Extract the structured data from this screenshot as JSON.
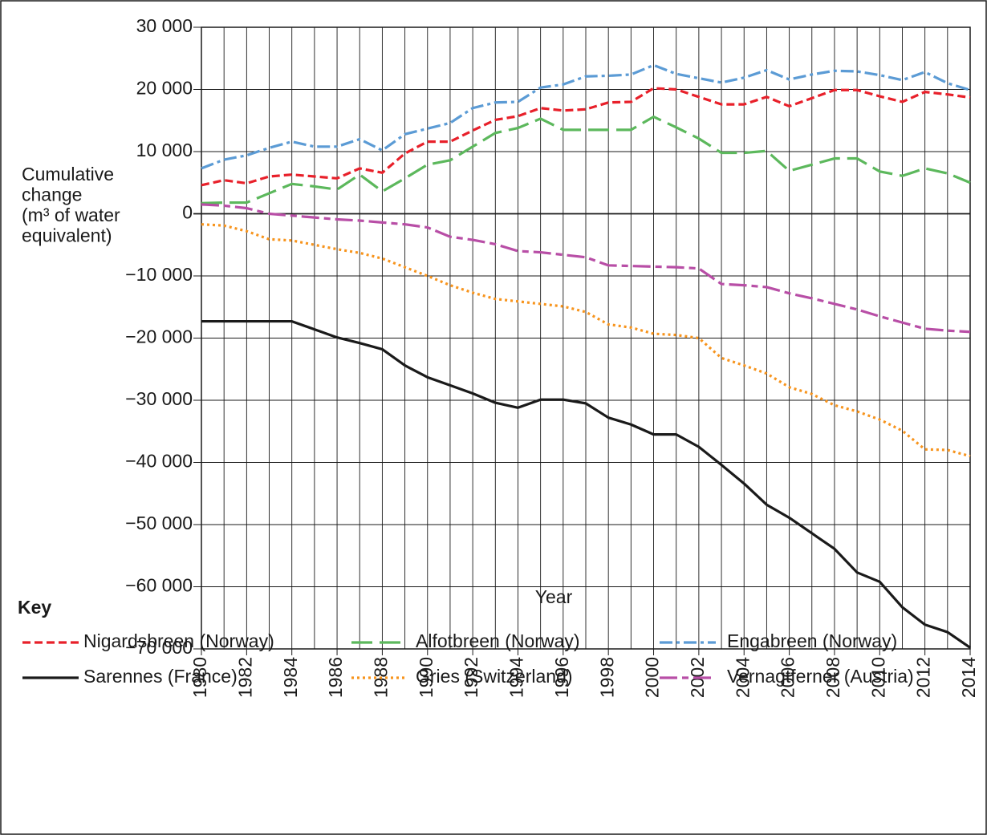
{
  "chart_data": {
    "type": "line",
    "y_label": [
      "Cumulative",
      "change",
      "(m³ of water",
      "equivalent)"
    ],
    "x_label": "Year",
    "legend_title": "Key",
    "x": [
      1980,
      1981,
      1982,
      1983,
      1984,
      1985,
      1986,
      1987,
      1988,
      1989,
      1990,
      1991,
      1992,
      1993,
      1994,
      1995,
      1996,
      1997,
      1998,
      1999,
      2000,
      2001,
      2002,
      2003,
      2004,
      2005,
      2006,
      2007,
      2008,
      2009,
      2010,
      2011,
      2012,
      2013,
      2014
    ],
    "xlim": [
      1980,
      2014
    ],
    "xticks": [
      1980,
      1982,
      1984,
      1986,
      1988,
      1990,
      1992,
      1994,
      1996,
      1998,
      2000,
      2002,
      2004,
      2006,
      2008,
      2010,
      2012,
      2014
    ],
    "ylim": [
      -70000,
      30000
    ],
    "yticks": [
      {
        "value": -70000,
        "label": "−70 000"
      },
      {
        "value": -60000,
        "label": "−60 000"
      },
      {
        "value": -50000,
        "label": "−50 000"
      },
      {
        "value": -40000,
        "label": "−40 000"
      },
      {
        "value": -30000,
        "label": "−30 000"
      },
      {
        "value": -20000,
        "label": "−20 000"
      },
      {
        "value": -10000,
        "label": "−10 000"
      },
      0,
      {
        "value": 10000,
        "label": "10 000"
      },
      {
        "value": 20000,
        "label": "20 000"
      },
      {
        "value": 30000,
        "label": "30 000"
      }
    ],
    "grid": true,
    "series": [
      {
        "name": "Nigardsbreen (Norway)",
        "color": "#e8202a",
        "style": "dashed",
        "values": [
          4600,
          5400,
          4900,
          6000,
          6300,
          6000,
          5700,
          7300,
          6600,
          9700,
          11600,
          11600,
          13400,
          15100,
          15700,
          17000,
          16600,
          16800,
          17900,
          18000,
          20200,
          20000,
          18800,
          17600,
          17600,
          18800,
          17300,
          18600,
          19900,
          19900,
          18900,
          18000,
          19600,
          19200,
          18700
        ]
      },
      {
        "name": "Alfotbreen (Norway)",
        "color": "#5cb85c",
        "style": "long-dashed",
        "values": [
          1700,
          1800,
          1800,
          3300,
          4800,
          4400,
          3900,
          6300,
          3600,
          5700,
          7900,
          8600,
          10800,
          13000,
          13800,
          15300,
          13500,
          13500,
          13500,
          13500,
          15600,
          13900,
          12100,
          9800,
          9800,
          10100,
          6900,
          7900,
          8900,
          8900,
          6800,
          6100,
          7300,
          6500,
          5000
        ]
      },
      {
        "name": "Engabreen (Norway)",
        "color": "#5b9bd5",
        "style": "dash-dot",
        "values": [
          7300,
          8700,
          9400,
          10600,
          11600,
          10800,
          10800,
          12000,
          10200,
          12800,
          13700,
          14600,
          17000,
          17900,
          18000,
          20300,
          20800,
          22100,
          22200,
          22400,
          23900,
          22500,
          21800,
          21100,
          21900,
          23100,
          21600,
          22400,
          23000,
          22900,
          22300,
          21500,
          22800,
          21000,
          19900
        ]
      },
      {
        "name": "Sarennes (France)",
        "color": "#1a1a1a",
        "style": "solid",
        "values": [
          -17300,
          -17300,
          -17300,
          -17300,
          -17300,
          -18600,
          -19900,
          -20800,
          -21800,
          -24400,
          -26300,
          -27600,
          -28900,
          -30400,
          -31200,
          -29900,
          -29900,
          -30500,
          -32800,
          -33900,
          -35500,
          -35500,
          -37500,
          -40400,
          -43400,
          -46800,
          -48900,
          -51400,
          -53900,
          -57700,
          -59200,
          -63300,
          -66100,
          -67300,
          -69800
        ]
      },
      {
        "name": "Gries (Switzerland)",
        "color": "#f7941d",
        "style": "dotted",
        "values": [
          -1700,
          -1900,
          -2800,
          -4100,
          -4300,
          -5000,
          -5700,
          -6300,
          -7200,
          -8600,
          -10000,
          -11500,
          -12700,
          -13700,
          -14100,
          -14500,
          -14900,
          -15800,
          -17800,
          -18300,
          -19300,
          -19500,
          -20000,
          -23200,
          -24400,
          -25700,
          -27900,
          -29000,
          -30800,
          -31800,
          -33100,
          -34900,
          -37900,
          -38000,
          -39000
        ]
      },
      {
        "name": "Vernagtferner (Austria)",
        "color": "#b84ea6",
        "style": "long-short",
        "values": [
          1500,
          1300,
          900,
          0,
          -300,
          -600,
          -900,
          -1100,
          -1400,
          -1700,
          -2200,
          -3700,
          -4200,
          -4900,
          -6000,
          -6200,
          -6600,
          -7000,
          -8300,
          -8400,
          -8500,
          -8600,
          -8800,
          -11300,
          -11500,
          -11800,
          -12800,
          -13600,
          -14500,
          -15400,
          -16500,
          -17500,
          -18500,
          -18800,
          -19000
        ]
      }
    ]
  }
}
